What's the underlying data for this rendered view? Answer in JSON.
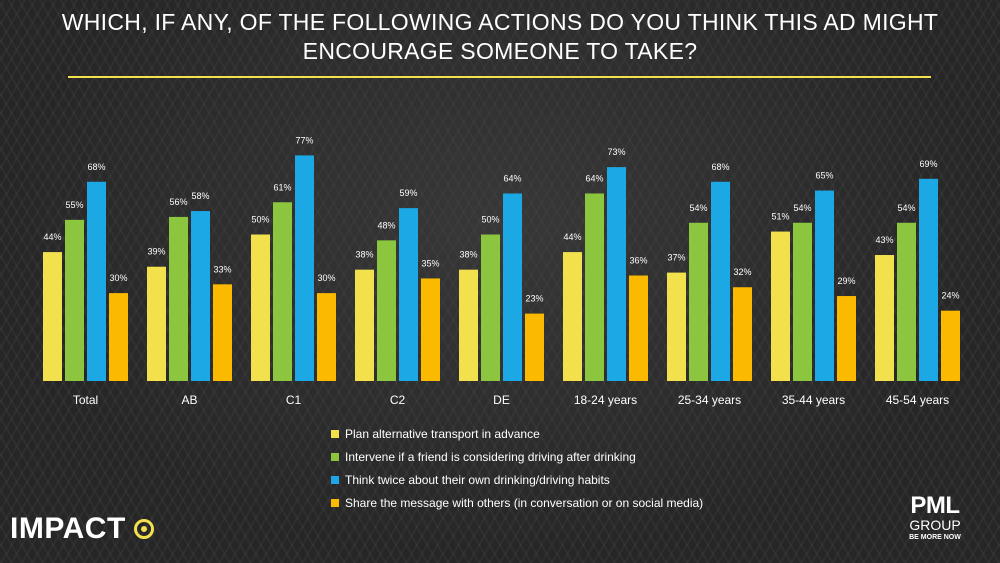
{
  "title": "WHICH, IF ANY, OF THE FOLLOWING ACTIONS DO YOU THINK THIS AD MIGHT ENCOURAGE SOMEONE TO TAKE?",
  "accent_color": "#f2e14c",
  "chart_data": {
    "type": "bar",
    "categories": [
      "Total",
      "AB",
      "C1",
      "C2",
      "DE",
      "18-24 years",
      "25-34 years",
      "35-44 years",
      "45-54 years"
    ],
    "series": [
      {
        "name": "Plan alternative transport in advance",
        "color": "#f2e14c",
        "values": [
          44,
          39,
          50,
          38,
          38,
          44,
          37,
          51,
          43
        ]
      },
      {
        "name": "Intervene if a friend is considering driving after drinking",
        "color": "#8cc63f",
        "values": [
          55,
          56,
          61,
          48,
          50,
          64,
          54,
          54,
          54
        ]
      },
      {
        "name": "Think twice about their own drinking/driving habits",
        "color": "#1ca7e5",
        "values": [
          68,
          58,
          77,
          59,
          64,
          73,
          68,
          65,
          69
        ]
      },
      {
        "name": "Share the message with others (in conversation or on social media)",
        "color": "#fbb900",
        "values": [
          30,
          33,
          30,
          35,
          23,
          36,
          32,
          29,
          24
        ]
      }
    ],
    "value_suffix": "%",
    "ylim": [
      0,
      100
    ],
    "grid": false,
    "legend_position": "bottom-center"
  },
  "logos": {
    "impact": "IMPACT",
    "pml_name": "PML",
    "pml_group": "GROUP",
    "pml_tagline": "BE MORE NOW"
  }
}
